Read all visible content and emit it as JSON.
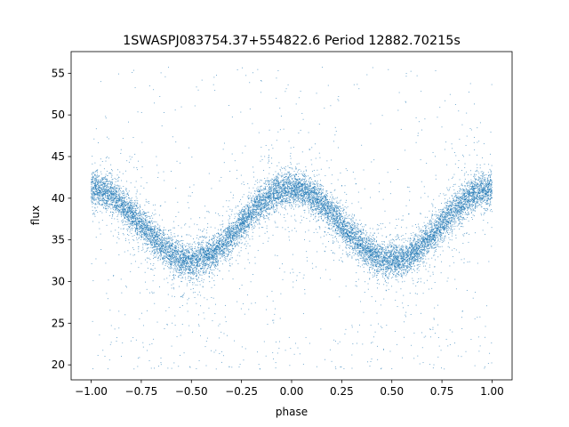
{
  "chart_data": {
    "type": "scatter",
    "title": "1SWASPJ083754.37+554822.6 Period 12882.70215s",
    "xlabel": "phase",
    "ylabel": "flux",
    "xlim": [
      -1.1,
      1.1
    ],
    "ylim": [
      18.2,
      57.6
    ],
    "xticks": [
      -1.0,
      -0.75,
      -0.5,
      -0.25,
      0.0,
      0.25,
      0.5,
      0.75,
      1.0
    ],
    "xtick_labels": [
      "−1.00",
      "−0.75",
      "−0.50",
      "−0.25",
      "0.00",
      "0.25",
      "0.50",
      "0.75",
      "1.00"
    ],
    "yticks": [
      20,
      25,
      30,
      35,
      40,
      45,
      50,
      55
    ],
    "ytick_labels": [
      "20",
      "25",
      "30",
      "35",
      "40",
      "45",
      "50",
      "55"
    ],
    "marker_color": "#1f77b4",
    "grid": false,
    "model": {
      "description": "phase-folded light curve, symmetric about phase 0",
      "maxima_phase": [
        -1.0,
        0.0,
        1.0
      ],
      "minima_phase": [
        -0.5,
        0.5
      ],
      "max_flux": 41.2,
      "min_flux": 32.5,
      "scatter_sigma": 1.0,
      "n_points": 14000,
      "outlier_fraction": 0.05,
      "outlier_range": [
        19.5,
        56
      ]
    }
  }
}
